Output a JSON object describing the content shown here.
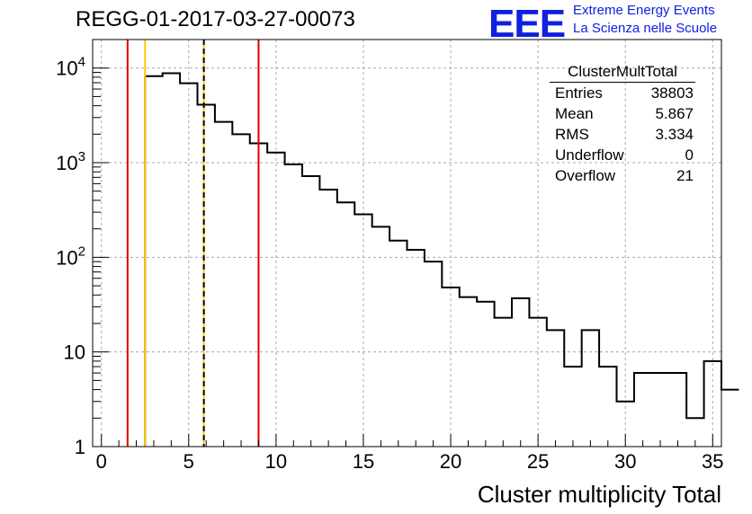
{
  "header": {
    "run_title": "REGG-01-2017-03-27-00073",
    "logo_text": "EEE",
    "logo_line1": "Extreme Energy Events",
    "logo_line2": "La Scienza nelle Scuole",
    "logo_color": "#1020e0"
  },
  "stats_box": {
    "title": "ClusterMultTotal",
    "rows": [
      {
        "label": "Entries",
        "value": "38803"
      },
      {
        "label": "Mean",
        "value": "5.867"
      },
      {
        "label": "RMS",
        "value": "3.334"
      },
      {
        "label": "Underflow",
        "value": "0"
      },
      {
        "label": "Overflow",
        "value": "21"
      }
    ]
  },
  "chart_data": {
    "type": "histogram",
    "title": "REGG-01-2017-03-27-00073",
    "xlabel": "Cluster multiplicity Total",
    "ylabel": "",
    "xlim": [
      -0.5,
      35.5
    ],
    "ylim": [
      1,
      20000
    ],
    "ylog": true,
    "grid": true,
    "bin_width": 1,
    "bin_edges_start": 2.5,
    "x_ticks": [
      "0",
      "5",
      "10",
      "15",
      "20",
      "25",
      "30",
      "35"
    ],
    "y_ticks": [
      "1",
      "10",
      "10^2",
      "10^3",
      "10^4"
    ],
    "counts": [
      8200,
      8800,
      6900,
      4100,
      2700,
      2000,
      1600,
      1280,
      960,
      720,
      520,
      380,
      285,
      210,
      150,
      120,
      90,
      48,
      38,
      34,
      23,
      37,
      23,
      17,
      7,
      17,
      7,
      3,
      6,
      6,
      6,
      2,
      8,
      4
    ],
    "vertical_lines": [
      {
        "x": 1.5,
        "color": "#e00000"
      },
      {
        "x": 2.5,
        "color": "#ffcc00"
      },
      {
        "x": 5.867,
        "color": "#ffcc00"
      },
      {
        "x": 5.867,
        "color": "#000000",
        "style": "dashed"
      },
      {
        "x": 9.0,
        "color": "#e00000"
      }
    ]
  }
}
